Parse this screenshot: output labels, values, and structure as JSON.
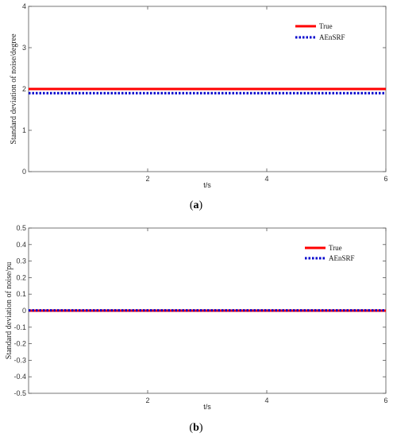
{
  "colors": {
    "true_line": "#ff0000",
    "aensrf_line": "#0000cc",
    "axis": "#555555"
  },
  "chart_data": [
    {
      "type": "line",
      "caption_letter": "a",
      "xlabel": "t/s",
      "ylabel": "Standard deviation of noise/degree",
      "xlim": [
        0,
        6
      ],
      "ylim": [
        0,
        4
      ],
      "x_ticks": [
        2,
        4,
        6
      ],
      "y_ticks": [
        0,
        1,
        2,
        3,
        4
      ],
      "grid": false,
      "legend_position": "top-right",
      "series": [
        {
          "name": "True",
          "color": "#ff0000",
          "style": "solid",
          "x": [
            0,
            6
          ],
          "y": [
            2.0,
            2.0
          ]
        },
        {
          "name": "AEnSRF",
          "color": "#0000cc",
          "style": "dotted",
          "x": [
            0,
            6
          ],
          "y": [
            1.9,
            1.9
          ]
        }
      ]
    },
    {
      "type": "line",
      "caption_letter": "b",
      "xlabel": "t/s",
      "ylabel": "Standard deviation of noise/pu",
      "xlim": [
        0,
        6
      ],
      "ylim": [
        -0.5,
        0.5
      ],
      "x_ticks": [
        2,
        4,
        6
      ],
      "y_ticks": [
        -0.5,
        -0.4,
        -0.3,
        -0.2,
        -0.1,
        0,
        0.1,
        0.2,
        0.3,
        0.4,
        0.5
      ],
      "grid": false,
      "legend_position": "top-right",
      "series": [
        {
          "name": "True",
          "color": "#ff0000",
          "style": "solid",
          "x": [
            0,
            6
          ],
          "y": [
            0,
            0
          ]
        },
        {
          "name": "AEnSRF",
          "color": "#0000cc",
          "style": "dotted",
          "x": [
            0,
            6
          ],
          "y": [
            0.002,
            0.002
          ]
        }
      ]
    }
  ]
}
